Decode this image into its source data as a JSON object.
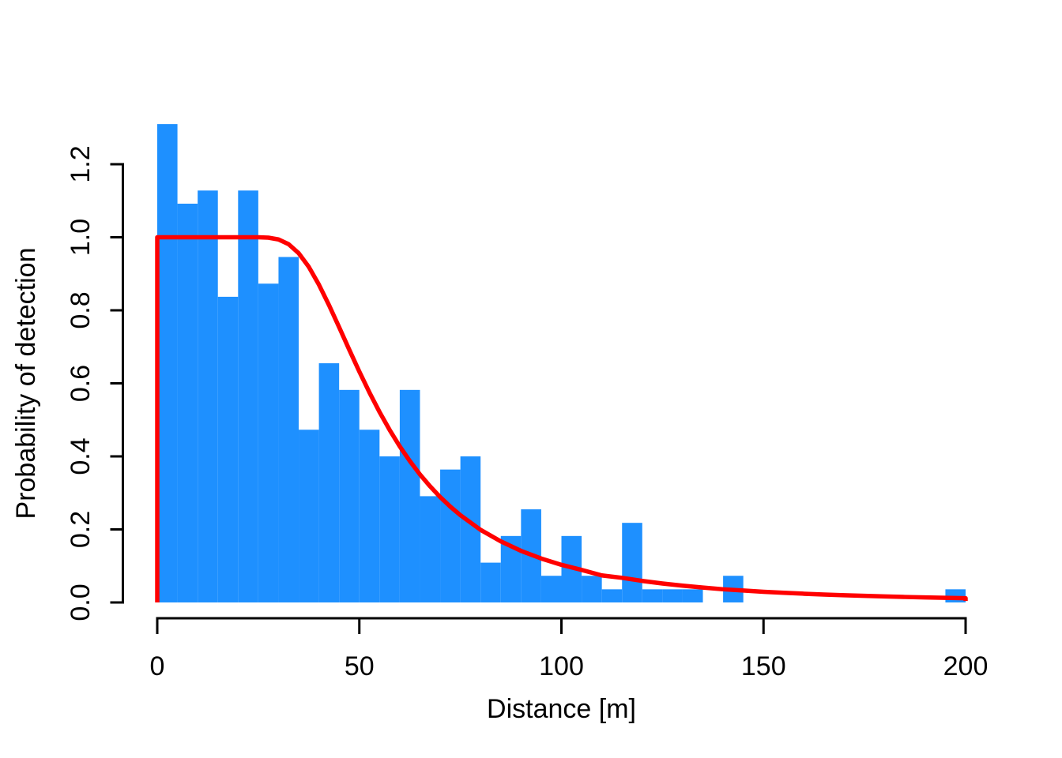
{
  "chart_data": {
    "type": "bar",
    "subtype": "histogram_with_fitted_line",
    "title": "",
    "xlabel": "Distance [m]",
    "ylabel": "Probability of detection",
    "xlim": [
      0,
      200
    ],
    "ylim": [
      0,
      1.2
    ],
    "grid": "off",
    "legend": "none",
    "x_ticks": {
      "values": [
        0,
        50,
        100,
        150,
        200
      ],
      "labels": [
        "0",
        "50",
        "100",
        "150",
        "200"
      ]
    },
    "y_ticks": {
      "values": [
        0,
        0.2,
        0.4,
        0.6,
        0.8,
        1.0,
        1.2
      ],
      "labels": [
        "0.0",
        "0.2",
        "0.4",
        "0.6",
        "0.8",
        "1.0",
        "1.2"
      ]
    },
    "bars": {
      "bin_width": 5,
      "bin_start": 0,
      "values": [
        1.31,
        1.092,
        1.128,
        0.837,
        1.128,
        0.873,
        0.946,
        0.473,
        0.655,
        0.582,
        0.473,
        0.4,
        0.582,
        0.291,
        0.364,
        0.4,
        0.109,
        0.182,
        0.255,
        0.073,
        0.182,
        0.073,
        0.036,
        0.218,
        0.036,
        0.036,
        0.036,
        0,
        0.073,
        0,
        0,
        0,
        0,
        0,
        0,
        0,
        0,
        0,
        0,
        0.036
      ]
    },
    "curve": {
      "name": "fitted-detection-function",
      "points": [
        [
          0,
          0
        ],
        [
          0,
          1.0
        ],
        [
          5,
          1.0
        ],
        [
          10,
          1.0
        ],
        [
          15,
          1.0
        ],
        [
          20,
          1.0
        ],
        [
          22.5,
          1.0
        ],
        [
          25,
          0.9999
        ],
        [
          27.5,
          0.9989
        ],
        [
          30,
          0.9941
        ],
        [
          32.5,
          0.9811
        ],
        [
          35,
          0.9563
        ],
        [
          37.5,
          0.9188
        ],
        [
          40,
          0.8702
        ],
        [
          42.5,
          0.814
        ],
        [
          45,
          0.7537
        ],
        [
          47.5,
          0.6923
        ],
        [
          50,
          0.6321
        ],
        [
          52.5,
          0.5749
        ],
        [
          55,
          0.5215
        ],
        [
          57.5,
          0.4724
        ],
        [
          60,
          0.4274
        ],
        [
          62.5,
          0.3872
        ],
        [
          65,
          0.3506
        ],
        [
          67.5,
          0.318
        ],
        [
          70,
          0.2887
        ],
        [
          72.5,
          0.2625
        ],
        [
          75,
          0.239
        ],
        [
          80,
          0.1988
        ],
        [
          85,
          0.1673
        ],
        [
          90,
          0.1413
        ],
        [
          95,
          0.1203
        ],
        [
          100,
          0.1031
        ],
        [
          105,
          0.089
        ],
        [
          110,
          0.074
        ],
        [
          115,
          0.0674
        ],
        [
          120,
          0.059
        ],
        [
          125,
          0.0519
        ],
        [
          130,
          0.0459
        ],
        [
          135,
          0.0408
        ],
        [
          140,
          0.0361
        ],
        [
          145,
          0.0326
        ],
        [
          150,
          0.0293
        ],
        [
          155,
          0.0264
        ],
        [
          160,
          0.0239
        ],
        [
          165,
          0.0217
        ],
        [
          170,
          0.0197
        ],
        [
          175,
          0.018
        ],
        [
          180,
          0.0164
        ],
        [
          185,
          0.015
        ],
        [
          190,
          0.0138
        ],
        [
          195,
          0.0127
        ],
        [
          200,
          0.0117
        ],
        [
          200,
          0.004
        ]
      ]
    },
    "colors": {
      "bar": "#1E90FF",
      "curve": "#FF0000",
      "axis": "#000000",
      "background": "#FFFFFF"
    }
  }
}
